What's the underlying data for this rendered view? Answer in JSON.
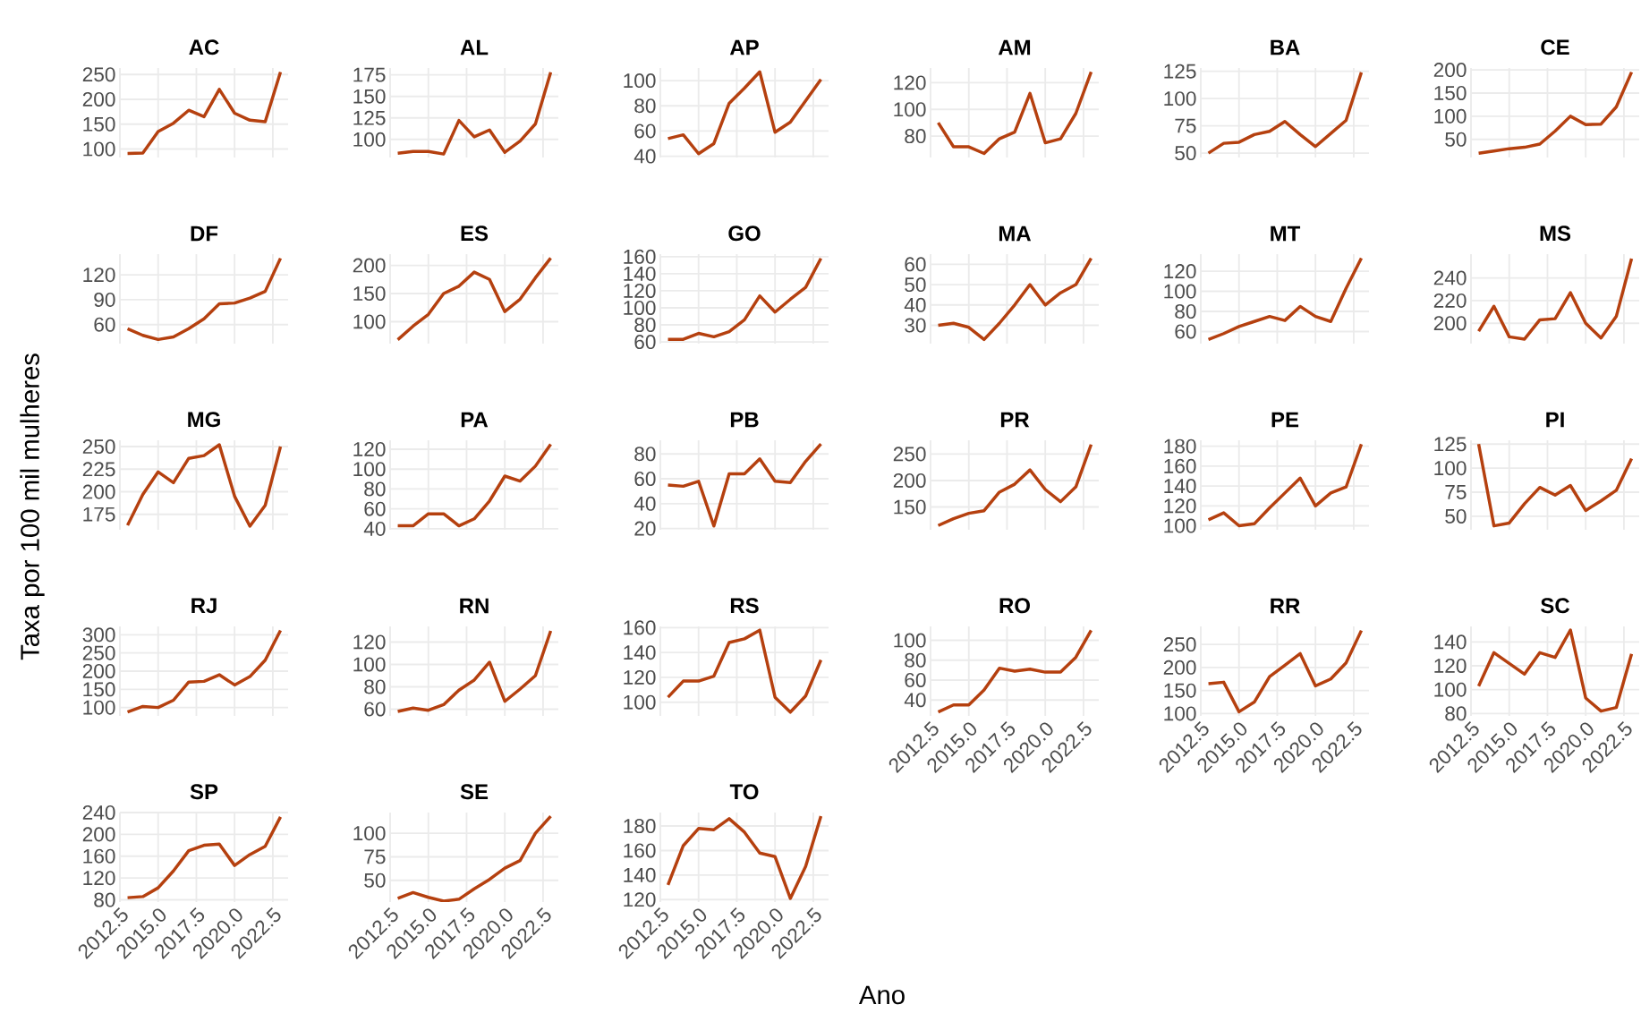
{
  "chart_data": [
    {
      "type": "line",
      "title": "AC",
      "x": [
        2013,
        2014,
        2015,
        2016,
        2017,
        2018,
        2019,
        2020,
        2021,
        2022,
        2023
      ],
      "values": [
        91,
        92,
        135,
        152,
        178,
        165,
        220,
        172,
        158,
        155,
        255
      ],
      "color": "#b5400f",
      "xlim": [
        2012.5,
        2023.5
      ],
      "xticks": [
        {
          "value": 2012.5,
          "label": null
        },
        {
          "value": 2015,
          "label": null
        },
        {
          "value": 2017.5,
          "label": null
        },
        {
          "value": 2020,
          "label": null
        },
        {
          "value": 2022.5,
          "label": null
        }
      ],
      "ylim": [
        83,
        263
      ],
      "yticks": [
        100,
        150,
        200,
        250
      ],
      "grid": true,
      "marker": "none",
      "line_style": "solid",
      "tick_labels": "y"
    },
    {
      "type": "line",
      "title": "AL",
      "x": [
        2013,
        2014,
        2015,
        2016,
        2017,
        2018,
        2019,
        2020,
        2021,
        2022,
        2023
      ],
      "values": [
        84,
        86,
        86,
        83,
        122,
        103,
        111,
        85,
        98,
        118,
        178
      ],
      "color": "#b5400f",
      "xlim": [
        2012.5,
        2023.5
      ],
      "xticks": [
        {
          "value": 2012.5,
          "label": null
        },
        {
          "value": 2015,
          "label": null
        },
        {
          "value": 2017.5,
          "label": null
        },
        {
          "value": 2020,
          "label": null
        },
        {
          "value": 2022.5,
          "label": null
        }
      ],
      "ylim": [
        79,
        183
      ],
      "yticks": [
        100,
        125,
        150,
        175
      ],
      "grid": true,
      "marker": "none",
      "line_style": "solid",
      "tick_labels": "y"
    },
    {
      "type": "line",
      "title": "AP",
      "x": [
        2013,
        2014,
        2015,
        2016,
        2017,
        2018,
        2019,
        2020,
        2021,
        2022,
        2023
      ],
      "values": [
        54,
        57,
        42,
        50,
        82,
        94,
        107,
        59,
        67,
        84,
        101
      ],
      "color": "#b5400f",
      "xlim": [
        2012.5,
        2023.5
      ],
      "xticks": [
        {
          "value": 2012.5,
          "label": null
        },
        {
          "value": 2015,
          "label": null
        },
        {
          "value": 2017.5,
          "label": null
        },
        {
          "value": 2020,
          "label": null
        },
        {
          "value": 2022.5,
          "label": null
        }
      ],
      "ylim": [
        39,
        110
      ],
      "yticks": [
        40,
        60,
        80,
        100
      ],
      "grid": true,
      "marker": "none",
      "line_style": "solid",
      "tick_labels": "y"
    },
    {
      "type": "line",
      "title": "AM",
      "x": [
        2013,
        2014,
        2015,
        2016,
        2017,
        2018,
        2019,
        2020,
        2021,
        2022,
        2023
      ],
      "values": [
        90,
        72,
        72,
        67,
        78,
        83,
        112,
        75,
        78,
        97,
        128
      ],
      "color": "#b5400f",
      "xlim": [
        2012.5,
        2023.5
      ],
      "xticks": [
        {
          "value": 2012.5,
          "label": null
        },
        {
          "value": 2015,
          "label": null
        },
        {
          "value": 2017.5,
          "label": null
        },
        {
          "value": 2020,
          "label": null
        },
        {
          "value": 2022.5,
          "label": null
        }
      ],
      "ylim": [
        64,
        131
      ],
      "yticks": [
        80,
        100,
        120
      ],
      "grid": true,
      "marker": "none",
      "line_style": "solid",
      "tick_labels": "y"
    },
    {
      "type": "line",
      "title": "BA",
      "x": [
        2013,
        2014,
        2015,
        2016,
        2017,
        2018,
        2019,
        2020,
        2021,
        2022,
        2023
      ],
      "values": [
        50,
        59,
        60,
        67,
        70,
        79,
        67,
        56,
        68,
        80,
        124
      ],
      "color": "#b5400f",
      "xlim": [
        2012.5,
        2023.5
      ],
      "xticks": [
        {
          "value": 2012.5,
          "label": null
        },
        {
          "value": 2015,
          "label": null
        },
        {
          "value": 2017.5,
          "label": null
        },
        {
          "value": 2020,
          "label": null
        },
        {
          "value": 2022.5,
          "label": null
        }
      ],
      "ylim": [
        46,
        128
      ],
      "yticks": [
        50,
        75,
        100,
        125
      ],
      "grid": true,
      "marker": "none",
      "line_style": "solid",
      "tick_labels": "y"
    },
    {
      "type": "line",
      "title": "CE",
      "x": [
        2013,
        2014,
        2015,
        2016,
        2017,
        2018,
        2019,
        2020,
        2021,
        2022,
        2023
      ],
      "values": [
        20,
        25,
        30,
        33,
        40,
        68,
        100,
        82,
        83,
        120,
        195
      ],
      "color": "#b5400f",
      "xlim": [
        2012.5,
        2023.5
      ],
      "xticks": [
        {
          "value": 2012.5,
          "label": null
        },
        {
          "value": 2015,
          "label": null
        },
        {
          "value": 2017.5,
          "label": null
        },
        {
          "value": 2020,
          "label": null
        },
        {
          "value": 2022.5,
          "label": null
        }
      ],
      "ylim": [
        11,
        204
      ],
      "yticks": [
        50,
        100,
        150,
        200
      ],
      "grid": true,
      "marker": "none",
      "line_style": "solid",
      "tick_labels": "y"
    },
    {
      "type": "line",
      "title": "DF",
      "x": [
        2013,
        2014,
        2015,
        2016,
        2017,
        2018,
        2019,
        2020,
        2021,
        2022,
        2023
      ],
      "values": [
        55,
        47,
        42,
        45,
        55,
        67,
        85,
        86,
        92,
        100,
        140
      ],
      "color": "#b5400f",
      "xlim": [
        2012.5,
        2023.5
      ],
      "xticks": [
        {
          "value": 2012.5,
          "label": null
        },
        {
          "value": 2015,
          "label": null
        },
        {
          "value": 2017.5,
          "label": null
        },
        {
          "value": 2020,
          "label": null
        },
        {
          "value": 2022.5,
          "label": null
        }
      ],
      "ylim": [
        37,
        145
      ],
      "yticks": [
        60,
        90,
        120
      ],
      "grid": true,
      "marker": "none",
      "line_style": "solid",
      "tick_labels": "y"
    },
    {
      "type": "line",
      "title": "ES",
      "x": [
        2013,
        2014,
        2015,
        2016,
        2017,
        2018,
        2019,
        2020,
        2021,
        2022,
        2023
      ],
      "values": [
        68,
        92,
        113,
        150,
        163,
        188,
        175,
        118,
        140,
        178,
        213
      ],
      "color": "#b5400f",
      "xlim": [
        2012.5,
        2023.5
      ],
      "xticks": [
        {
          "value": 2012.5,
          "label": null
        },
        {
          "value": 2015,
          "label": null
        },
        {
          "value": 2017.5,
          "label": null
        },
        {
          "value": 2020,
          "label": null
        },
        {
          "value": 2022.5,
          "label": null
        }
      ],
      "ylim": [
        61,
        220
      ],
      "yticks": [
        100,
        150,
        200
      ],
      "grid": true,
      "marker": "none",
      "line_style": "solid",
      "tick_labels": "y"
    },
    {
      "type": "line",
      "title": "GO",
      "x": [
        2013,
        2014,
        2015,
        2016,
        2017,
        2018,
        2019,
        2020,
        2021,
        2022,
        2023
      ],
      "values": [
        63,
        63,
        70,
        66,
        72,
        86,
        114,
        95,
        110,
        124,
        158
      ],
      "color": "#b5400f",
      "xlim": [
        2012.5,
        2023.5
      ],
      "xticks": [
        {
          "value": 2012.5,
          "label": null
        },
        {
          "value": 2015,
          "label": null
        },
        {
          "value": 2017.5,
          "label": null
        },
        {
          "value": 2020,
          "label": null
        },
        {
          "value": 2022.5,
          "label": null
        }
      ],
      "ylim": [
        58,
        163
      ],
      "yticks": [
        60,
        80,
        100,
        120,
        140,
        160
      ],
      "grid": true,
      "marker": "none",
      "line_style": "solid",
      "tick_labels": "y"
    },
    {
      "type": "line",
      "title": "MA",
      "x": [
        2013,
        2014,
        2015,
        2016,
        2017,
        2018,
        2019,
        2020,
        2021,
        2022,
        2023
      ],
      "values": [
        30,
        31,
        29,
        23,
        31,
        40,
        50,
        40,
        46,
        50,
        63
      ],
      "color": "#b5400f",
      "xlim": [
        2012.5,
        2023.5
      ],
      "xticks": [
        {
          "value": 2012.5,
          "label": null
        },
        {
          "value": 2015,
          "label": null
        },
        {
          "value": 2017.5,
          "label": null
        },
        {
          "value": 2020,
          "label": null
        },
        {
          "value": 2022.5,
          "label": null
        }
      ],
      "ylim": [
        21,
        65
      ],
      "yticks": [
        30,
        40,
        50,
        60
      ],
      "grid": true,
      "marker": "none",
      "line_style": "solid",
      "tick_labels": "y"
    },
    {
      "type": "line",
      "title": "MT",
      "x": [
        2013,
        2014,
        2015,
        2016,
        2017,
        2018,
        2019,
        2020,
        2021,
        2022,
        2023
      ],
      "values": [
        52,
        58,
        65,
        70,
        75,
        71,
        85,
        75,
        70,
        103,
        133
      ],
      "color": "#b5400f",
      "xlim": [
        2012.5,
        2023.5
      ],
      "xticks": [
        {
          "value": 2012.5,
          "label": null
        },
        {
          "value": 2015,
          "label": null
        },
        {
          "value": 2017.5,
          "label": null
        },
        {
          "value": 2020,
          "label": null
        },
        {
          "value": 2022.5,
          "label": null
        }
      ],
      "ylim": [
        48,
        137
      ],
      "yticks": [
        60,
        80,
        100,
        120
      ],
      "grid": true,
      "marker": "none",
      "line_style": "solid",
      "tick_labels": "y"
    },
    {
      "type": "line",
      "title": "MS",
      "x": [
        2013,
        2014,
        2015,
        2016,
        2017,
        2018,
        2019,
        2020,
        2021,
        2022,
        2023
      ],
      "values": [
        193,
        215,
        188,
        186,
        203,
        204,
        227,
        200,
        187,
        206,
        257
      ],
      "color": "#b5400f",
      "xlim": [
        2012.5,
        2023.5
      ],
      "xticks": [
        {
          "value": 2012.5,
          "label": null
        },
        {
          "value": 2015,
          "label": null
        },
        {
          "value": 2017.5,
          "label": null
        },
        {
          "value": 2020,
          "label": null
        },
        {
          "value": 2022.5,
          "label": null
        }
      ],
      "ylim": [
        182,
        261
      ],
      "yticks": [
        200,
        220,
        240
      ],
      "grid": true,
      "marker": "none",
      "line_style": "solid",
      "tick_labels": "y"
    },
    {
      "type": "line",
      "title": "MG",
      "annotations": [
        "Taxa por 100 mil mulheres"
      ],
      "x": [
        2013,
        2014,
        2015,
        2016,
        2017,
        2018,
        2019,
        2020,
        2021,
        2022,
        2023
      ],
      "values": [
        163,
        197,
        222,
        210,
        237,
        240,
        252,
        195,
        162,
        185,
        250
      ],
      "color": "#b5400f",
      "xlim": [
        2012.5,
        2023.5
      ],
      "xticks": [
        {
          "value": 2012.5,
          "label": null
        },
        {
          "value": 2015,
          "label": null
        },
        {
          "value": 2017.5,
          "label": null
        },
        {
          "value": 2020,
          "label": null
        },
        {
          "value": 2022.5,
          "label": null
        }
      ],
      "ylim": [
        158,
        257
      ],
      "yticks": [
        175,
        200,
        225,
        250
      ],
      "grid": true,
      "marker": "none",
      "line_style": "solid",
      "tick_labels": "y"
    },
    {
      "type": "line",
      "title": "PA",
      "x": [
        2013,
        2014,
        2015,
        2016,
        2017,
        2018,
        2019,
        2020,
        2021,
        2022,
        2023
      ],
      "values": [
        43,
        43,
        55,
        55,
        43,
        50,
        68,
        93,
        88,
        103,
        125
      ],
      "color": "#b5400f",
      "xlim": [
        2012.5,
        2023.5
      ],
      "xticks": [
        {
          "value": 2012.5,
          "label": null
        },
        {
          "value": 2015,
          "label": null
        },
        {
          "value": 2017.5,
          "label": null
        },
        {
          "value": 2020,
          "label": null
        },
        {
          "value": 2022.5,
          "label": null
        }
      ],
      "ylim": [
        39,
        129
      ],
      "yticks": [
        40,
        60,
        80,
        100,
        120
      ],
      "grid": true,
      "marker": "none",
      "line_style": "solid",
      "tick_labels": "y"
    },
    {
      "type": "line",
      "title": "PB",
      "x": [
        2013,
        2014,
        2015,
        2016,
        2017,
        2018,
        2019,
        2020,
        2021,
        2022,
        2023
      ],
      "values": [
        55,
        54,
        58,
        22,
        64,
        64,
        76,
        58,
        57,
        74,
        88
      ],
      "color": "#b5400f",
      "xlim": [
        2012.5,
        2023.5
      ],
      "xticks": [
        {
          "value": 2012.5,
          "label": null
        },
        {
          "value": 2015,
          "label": null
        },
        {
          "value": 2017.5,
          "label": null
        },
        {
          "value": 2020,
          "label": null
        },
        {
          "value": 2022.5,
          "label": null
        }
      ],
      "ylim": [
        19,
        91
      ],
      "yticks": [
        20,
        40,
        60,
        80
      ],
      "grid": true,
      "marker": "none",
      "line_style": "solid",
      "tick_labels": "y"
    },
    {
      "type": "line",
      "title": "PR",
      "x": [
        2013,
        2014,
        2015,
        2016,
        2017,
        2018,
        2019,
        2020,
        2021,
        2022,
        2023
      ],
      "values": [
        115,
        128,
        138,
        143,
        178,
        193,
        220,
        183,
        160,
        188,
        268
      ],
      "color": "#b5400f",
      "xlim": [
        2012.5,
        2023.5
      ],
      "xticks": [
        {
          "value": 2012.5,
          "label": null
        },
        {
          "value": 2015,
          "label": null
        },
        {
          "value": 2017.5,
          "label": null
        },
        {
          "value": 2020,
          "label": null
        },
        {
          "value": 2022.5,
          "label": null
        }
      ],
      "ylim": [
        107,
        276
      ],
      "yticks": [
        150,
        200,
        250
      ],
      "grid": true,
      "marker": "none",
      "line_style": "solid",
      "tick_labels": "y"
    },
    {
      "type": "line",
      "title": "PE",
      "x": [
        2013,
        2014,
        2015,
        2016,
        2017,
        2018,
        2019,
        2020,
        2021,
        2022,
        2023
      ],
      "values": [
        106,
        113,
        100,
        102,
        118,
        133,
        148,
        120,
        133,
        139,
        182
      ],
      "color": "#b5400f",
      "xlim": [
        2012.5,
        2023.5
      ],
      "xticks": [
        {
          "value": 2012.5,
          "label": null
        },
        {
          "value": 2015,
          "label": null
        },
        {
          "value": 2017.5,
          "label": null
        },
        {
          "value": 2020,
          "label": null
        },
        {
          "value": 2022.5,
          "label": null
        }
      ],
      "ylim": [
        96,
        186
      ],
      "yticks": [
        100,
        120,
        140,
        160,
        180
      ],
      "grid": true,
      "marker": "none",
      "line_style": "solid",
      "tick_labels": "y"
    },
    {
      "type": "line",
      "title": "PI",
      "x": [
        2013,
        2014,
        2015,
        2016,
        2017,
        2018,
        2019,
        2020,
        2021,
        2022,
        2023
      ],
      "values": [
        125,
        40,
        43,
        63,
        80,
        72,
        82,
        56,
        66,
        77,
        110
      ],
      "color": "#b5400f",
      "xlim": [
        2012.5,
        2023.5
      ],
      "xticks": [
        {
          "value": 2012.5,
          "label": null
        },
        {
          "value": 2015,
          "label": null
        },
        {
          "value": 2017.5,
          "label": null
        },
        {
          "value": 2020,
          "label": null
        },
        {
          "value": 2022.5,
          "label": null
        }
      ],
      "ylim": [
        36,
        129
      ],
      "yticks": [
        50,
        75,
        100,
        125
      ],
      "grid": true,
      "marker": "none",
      "line_style": "solid",
      "tick_labels": "y"
    },
    {
      "type": "line",
      "title": "RJ",
      "x": [
        2013,
        2014,
        2015,
        2016,
        2017,
        2018,
        2019,
        2020,
        2021,
        2022,
        2023
      ],
      "values": [
        88,
        103,
        100,
        120,
        170,
        172,
        190,
        162,
        185,
        230,
        312
      ],
      "color": "#b5400f",
      "xlim": [
        2012.5,
        2023.5
      ],
      "xticks": [
        {
          "value": 2012.5,
          "label": null
        },
        {
          "value": 2015,
          "label": null
        },
        {
          "value": 2017.5,
          "label": null
        },
        {
          "value": 2020,
          "label": null
        },
        {
          "value": 2022.5,
          "label": null
        }
      ],
      "ylim": [
        77,
        323
      ],
      "yticks": [
        100,
        150,
        200,
        250,
        300
      ],
      "grid": true,
      "marker": "none",
      "line_style": "solid",
      "tick_labels": "y"
    },
    {
      "type": "line",
      "title": "RN",
      "x": [
        2013,
        2014,
        2015,
        2016,
        2017,
        2018,
        2019,
        2020,
        2021,
        2022,
        2023
      ],
      "values": [
        58,
        61,
        59,
        64,
        77,
        86,
        102,
        67,
        78,
        90,
        130
      ],
      "color": "#b5400f",
      "xlim": [
        2012.5,
        2023.5
      ],
      "xticks": [
        {
          "value": 2012.5,
          "label": null
        },
        {
          "value": 2015,
          "label": null
        },
        {
          "value": 2017.5,
          "label": null
        },
        {
          "value": 2020,
          "label": null
        },
        {
          "value": 2022.5,
          "label": null
        }
      ],
      "ylim": [
        54,
        134
      ],
      "yticks": [
        60,
        80,
        100,
        120
      ],
      "grid": true,
      "marker": "none",
      "line_style": "solid",
      "tick_labels": "y"
    },
    {
      "type": "line",
      "title": "RS",
      "x": [
        2013,
        2014,
        2015,
        2016,
        2017,
        2018,
        2019,
        2020,
        2021,
        2022,
        2023
      ],
      "values": [
        104,
        117,
        117,
        121,
        148,
        151,
        158,
        104,
        92,
        105,
        134
      ],
      "color": "#b5400f",
      "xlim": [
        2012.5,
        2023.5
      ],
      "xticks": [
        {
          "value": 2012.5,
          "label": null
        },
        {
          "value": 2015,
          "label": null
        },
        {
          "value": 2017.5,
          "label": null
        },
        {
          "value": 2020,
          "label": null
        },
        {
          "value": 2022.5,
          "label": null
        }
      ],
      "ylim": [
        89,
        161
      ],
      "yticks": [
        100,
        120,
        140,
        160
      ],
      "grid": true,
      "marker": "none",
      "line_style": "solid",
      "tick_labels": "y"
    },
    {
      "type": "line",
      "title": "RO",
      "x": [
        2013,
        2014,
        2015,
        2016,
        2017,
        2018,
        2019,
        2020,
        2021,
        2022,
        2023
      ],
      "values": [
        28,
        35,
        35,
        50,
        72,
        69,
        71,
        68,
        68,
        83,
        110
      ],
      "color": "#b5400f",
      "xlim": [
        2012.5,
        2023.5
      ],
      "xticks": [
        {
          "value": 2012.5,
          "label": "2012.5"
        },
        {
          "value": 2015,
          "label": "2015.0"
        },
        {
          "value": 2017.5,
          "label": "2017.5"
        },
        {
          "value": 2020,
          "label": "2020.0"
        },
        {
          "value": 2022.5,
          "label": "2022.5"
        }
      ],
      "ylim": [
        24,
        114
      ],
      "yticks": [
        40,
        60,
        80,
        100
      ],
      "grid": true,
      "marker": "none",
      "line_style": "solid"
    },
    {
      "type": "line",
      "title": "RR",
      "x": [
        2013,
        2014,
        2015,
        2016,
        2017,
        2018,
        2019,
        2020,
        2021,
        2022,
        2023
      ],
      "values": [
        165,
        168,
        104,
        125,
        180,
        205,
        230,
        160,
        175,
        210,
        280
      ],
      "color": "#b5400f",
      "xlim": [
        2012.5,
        2023.5
      ],
      "xticks": [
        {
          "value": 2012.5,
          "label": "2012.5"
        },
        {
          "value": 2015,
          "label": "2015.0"
        },
        {
          "value": 2017.5,
          "label": "2017.5"
        },
        {
          "value": 2020,
          "label": "2020.0"
        },
        {
          "value": 2022.5,
          "label": "2022.5"
        }
      ],
      "ylim": [
        95,
        289
      ],
      "yticks": [
        100,
        150,
        200,
        250
      ],
      "grid": true,
      "marker": "none",
      "line_style": "solid"
    },
    {
      "type": "line",
      "title": "SC",
      "x": [
        2013,
        2014,
        2015,
        2016,
        2017,
        2018,
        2019,
        2020,
        2021,
        2022,
        2023
      ],
      "values": [
        103,
        131,
        122,
        113,
        131,
        127,
        150,
        93,
        82,
        85,
        130
      ],
      "color": "#b5400f",
      "xlim": [
        2012.5,
        2023.5
      ],
      "xticks": [
        {
          "value": 2012.5,
          "label": "2012.5"
        },
        {
          "value": 2015,
          "label": "2015.0"
        },
        {
          "value": 2017.5,
          "label": "2017.5"
        },
        {
          "value": 2020,
          "label": "2020.0"
        },
        {
          "value": 2022.5,
          "label": "2022.5"
        }
      ],
      "ylim": [
        78,
        153
      ],
      "yticks": [
        80,
        100,
        120,
        140
      ],
      "grid": true,
      "marker": "none",
      "line_style": "solid"
    },
    {
      "type": "line",
      "title": "SP",
      "x": [
        2013,
        2014,
        2015,
        2016,
        2017,
        2018,
        2019,
        2020,
        2021,
        2022,
        2023
      ],
      "values": [
        84,
        86,
        102,
        133,
        170,
        180,
        182,
        143,
        163,
        178,
        232
      ],
      "color": "#b5400f",
      "xlim": [
        2012.5,
        2023.5
      ],
      "xticks": [
        {
          "value": 2012.5,
          "label": "2012.5"
        },
        {
          "value": 2015,
          "label": "2015.0"
        },
        {
          "value": 2017.5,
          "label": "2017.5"
        },
        {
          "value": 2020,
          "label": "2020.0"
        },
        {
          "value": 2022.5,
          "label": "2022.5"
        }
      ],
      "ylim": [
        76,
        240
      ],
      "yticks": [
        80,
        120,
        160,
        200,
        240
      ],
      "grid": true,
      "marker": "none",
      "line_style": "solid"
    },
    {
      "type": "line",
      "title": "SE",
      "x": [
        2013,
        2014,
        2015,
        2016,
        2017,
        2018,
        2019,
        2020,
        2021,
        2022,
        2023
      ],
      "values": [
        31,
        37,
        32,
        28,
        30,
        41,
        51,
        63,
        71,
        100,
        118
      ],
      "color": "#b5400f",
      "xlim": [
        2012.5,
        2023.5
      ],
      "xticks": [
        {
          "value": 2012.5,
          "label": "2012.5"
        },
        {
          "value": 2015,
          "label": "2015.0"
        },
        {
          "value": 2017.5,
          "label": "2017.5"
        },
        {
          "value": 2020,
          "label": "2020.0"
        },
        {
          "value": 2022.5,
          "label": "2022.5"
        }
      ],
      "ylim": [
        27,
        122
      ],
      "yticks": [
        50,
        75,
        100
      ],
      "grid": true,
      "marker": "none",
      "line_style": "solid"
    },
    {
      "type": "line",
      "title": "TO",
      "annotations": [
        "Ano"
      ],
      "x": [
        2013,
        2014,
        2015,
        2016,
        2017,
        2018,
        2019,
        2020,
        2021,
        2022,
        2023
      ],
      "values": [
        132,
        164,
        178,
        177,
        186,
        175,
        158,
        155,
        121,
        147,
        188
      ],
      "color": "#b5400f",
      "xlim": [
        2012.5,
        2023.5
      ],
      "xticks": [
        {
          "value": 2012.5,
          "label": "2012.5"
        },
        {
          "value": 2015,
          "label": "2015.0"
        },
        {
          "value": 2017.5,
          "label": "2017.5"
        },
        {
          "value": 2020,
          "label": "2020.0"
        },
        {
          "value": 2022.5,
          "label": "2022.5"
        }
      ],
      "ylim": [
        118,
        191
      ],
      "yticks": [
        120,
        140,
        160,
        180
      ],
      "grid": true,
      "marker": "none",
      "line_style": "solid"
    }
  ]
}
